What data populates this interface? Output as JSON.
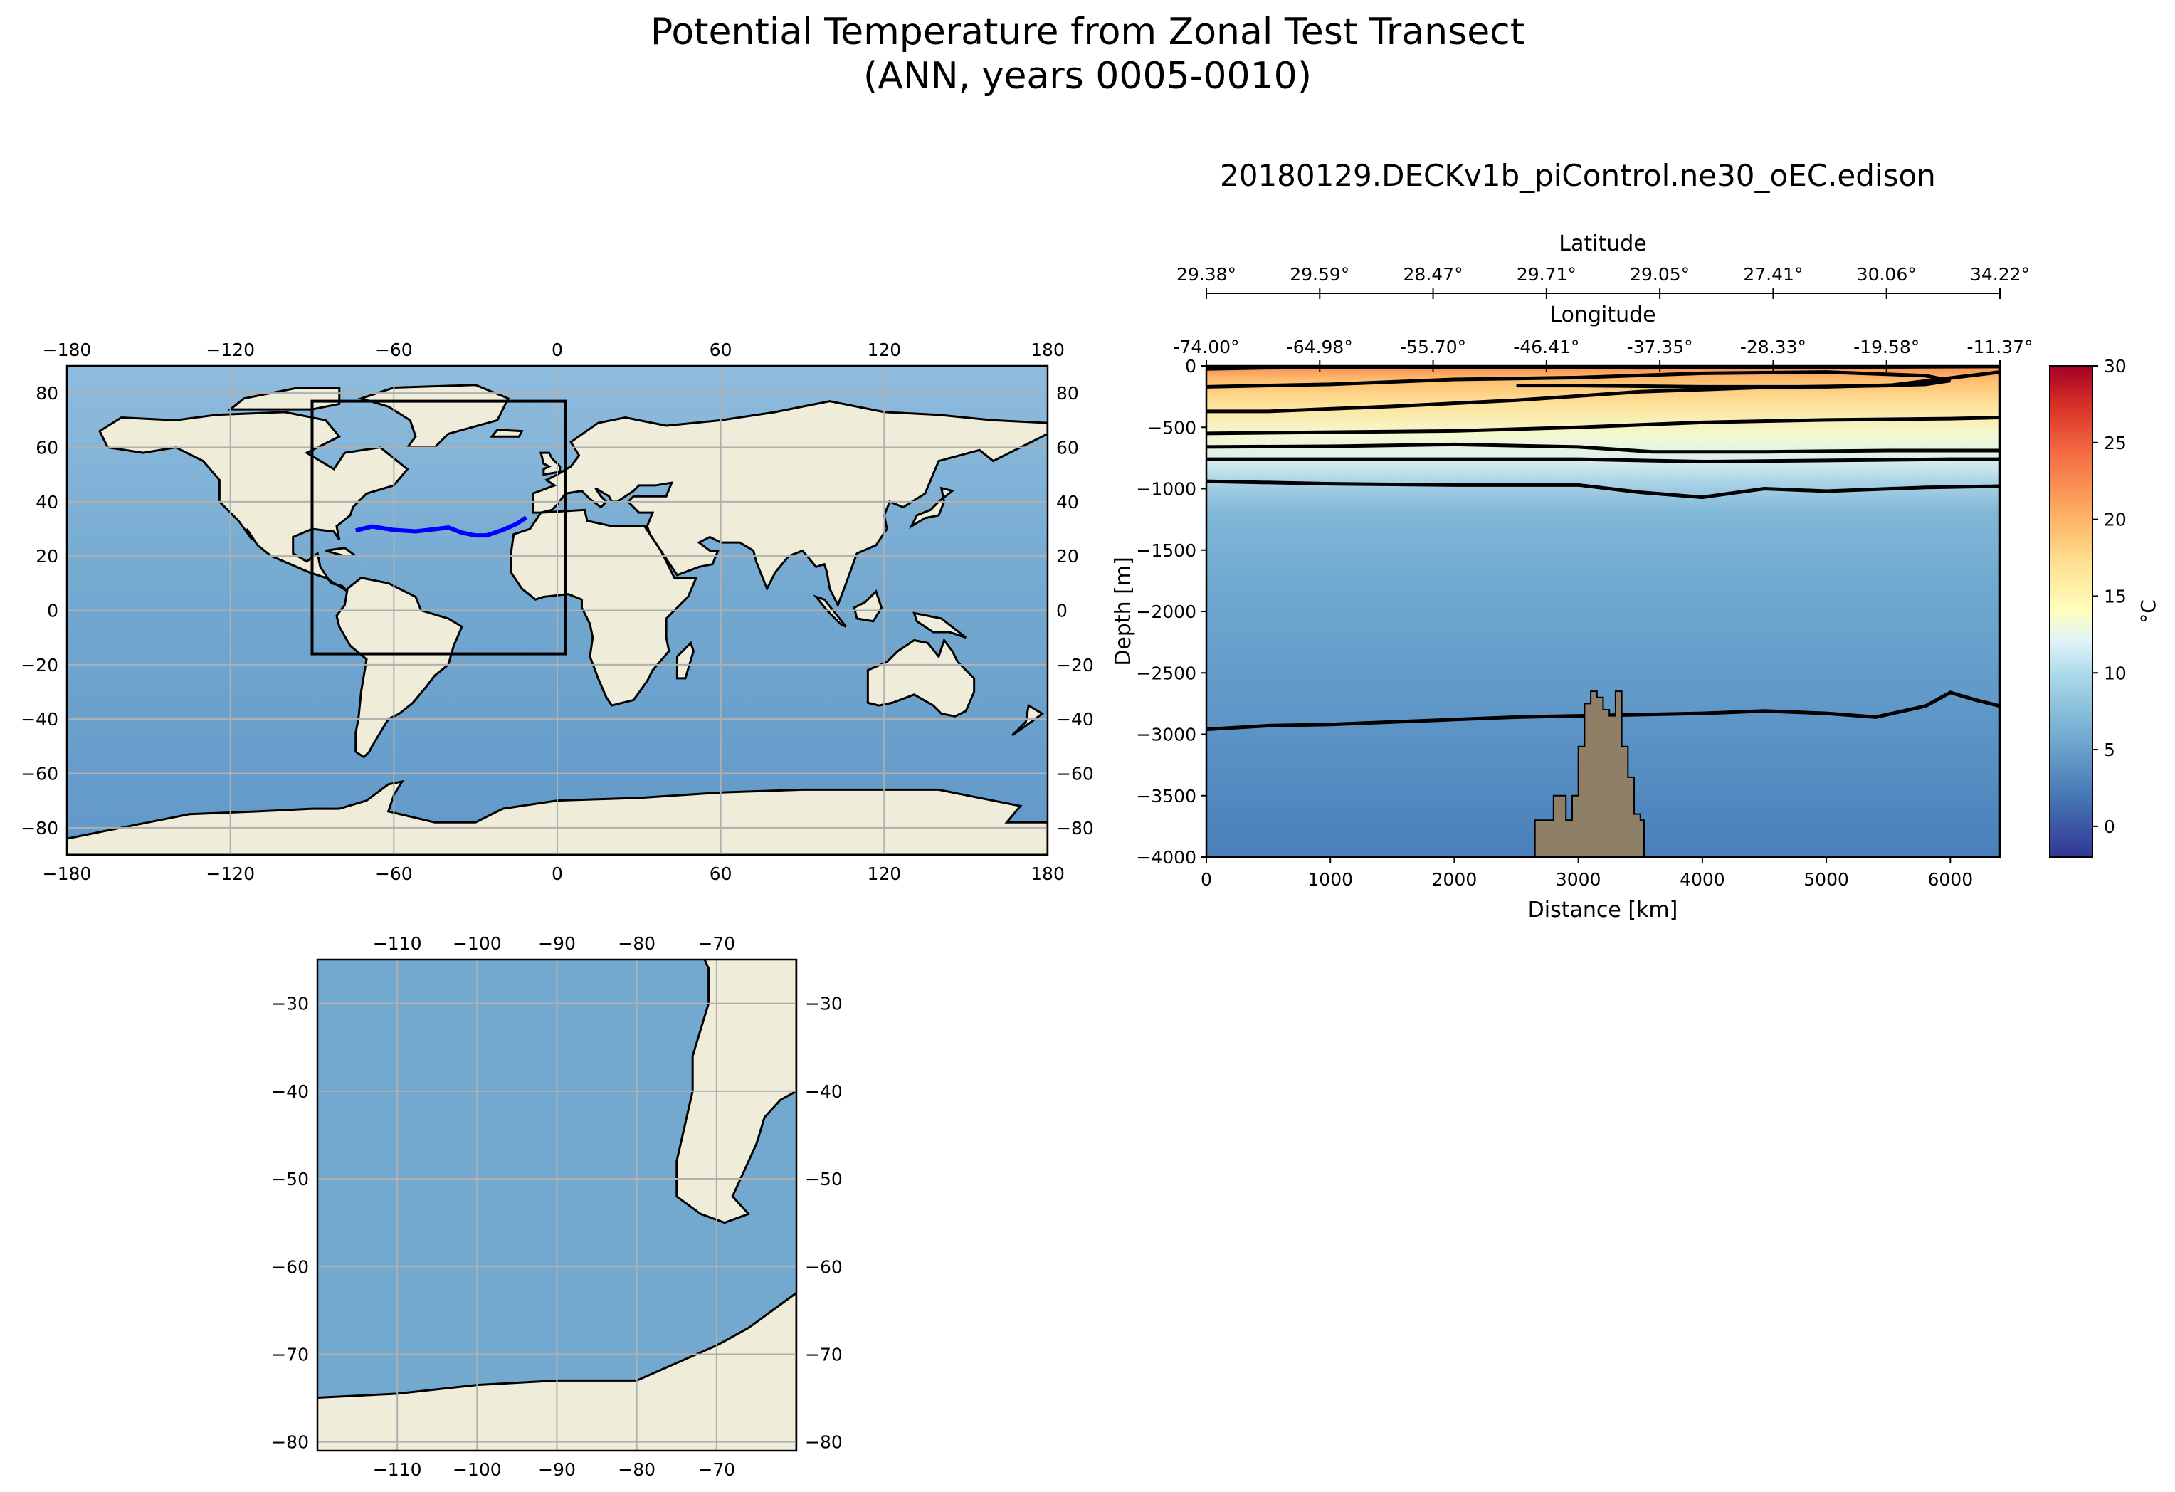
{
  "figure": {
    "title_line1": "Potential Temperature from Zonal Test Transect",
    "title_line2": "(ANN, years 0005-0010)",
    "run_name": "20180129.DECKv1b_piControl.ne30_oEC.edison"
  },
  "colors": {
    "ocean": "#74a9cf",
    "land": "#efecd9",
    "transect": "#0000ff",
    "seafloor": "#8f7f66",
    "contour": "#000000",
    "grid": "#b0b0b0"
  },
  "chart_data": [
    {
      "type": "map",
      "name": "global-map",
      "projection": "PlateCarree",
      "xlim": [
        -180,
        180
      ],
      "ylim": [
        -90,
        90
      ],
      "xticks": [
        -180,
        -120,
        -60,
        0,
        60,
        120,
        180
      ],
      "yticks": [
        -80,
        -60,
        -40,
        -20,
        0,
        20,
        40,
        60,
        80
      ],
      "grid": true,
      "region_box": {
        "lon": [
          -90,
          3
        ],
        "lat": [
          -16,
          77
        ]
      },
      "transect": {
        "lon": [
          -74.0,
          -68,
          -60,
          -52,
          -46.41,
          -40,
          -35,
          -30,
          -26,
          -20,
          -15,
          -11.37
        ],
        "lat": [
          29.38,
          30.9,
          29.6,
          29.1,
          29.7,
          30.5,
          28.6,
          27.6,
          27.6,
          29.6,
          31.8,
          34.22
        ]
      }
    },
    {
      "type": "map",
      "name": "inset-map",
      "projection": "PlateCarree",
      "xlim": [
        -120,
        -60
      ],
      "ylim": [
        -81,
        -25
      ],
      "xticks": [
        -110,
        -100,
        -90,
        -80,
        -70
      ],
      "yticks": [
        -30,
        -40,
        -50,
        -60,
        -70,
        -80
      ],
      "grid": true
    },
    {
      "type": "heatmap",
      "name": "transect-section",
      "xlabel": "Distance [km]",
      "ylabel": "Depth [m]",
      "xlim": [
        0,
        6400
      ],
      "ylim": [
        -4000,
        0
      ],
      "xticks": [
        0,
        1000,
        2000,
        3000,
        4000,
        5000,
        6000
      ],
      "yticks": [
        0,
        -500,
        -1000,
        -1500,
        -2000,
        -2500,
        -3000,
        -3500,
        -4000
      ],
      "top_axis_1": {
        "label": "Latitude",
        "ticks": [
          "29.38°",
          "29.59°",
          "28.47°",
          "29.71°",
          "29.05°",
          "27.41°",
          "30.06°",
          "34.22°"
        ]
      },
      "top_axis_2": {
        "label": "Longitude",
        "ticks": [
          "-74.00°",
          "-64.98°",
          "-55.70°",
          "-46.41°",
          "-37.35°",
          "-28.33°",
          "-19.58°",
          "-11.37°"
        ]
      },
      "colorbar": {
        "label": "°C",
        "range": [
          -2,
          30
        ],
        "ticks": [
          0,
          5,
          10,
          15,
          20,
          25,
          30
        ],
        "colormap": "RdYlBu_r"
      },
      "contours": [
        {
          "x": [
            0,
            500,
            1500,
            2500,
            3500,
            4500,
            5500,
            6400
          ],
          "depth": [
            -25,
            -15,
            -10,
            -12,
            -15,
            -10,
            -8,
            -5
          ]
        },
        {
          "x": [
            0,
            1000,
            2000,
            3000,
            4000,
            5000,
            5800,
            6000,
            5800,
            5000,
            4000,
            3000,
            2500
          ],
          "depth": [
            -170,
            -150,
            -110,
            -95,
            -60,
            -50,
            -80,
            -120,
            -150,
            -170,
            -170,
            -160,
            -160
          ]
        },
        {
          "x": [
            0,
            500,
            1500,
            2500,
            3500,
            4500,
            5500,
            6400
          ],
          "depth": [
            -370,
            -370,
            -330,
            -280,
            -210,
            -175,
            -160,
            -50
          ]
        },
        {
          "x": [
            0,
            1000,
            2000,
            3000,
            4000,
            5000,
            6000,
            6400
          ],
          "depth": [
            -550,
            -540,
            -530,
            -500,
            -460,
            -440,
            -430,
            -420
          ]
        },
        {
          "x": [
            0,
            1000,
            2000,
            3000,
            3600,
            4500,
            5500,
            6400
          ],
          "depth": [
            -660,
            -655,
            -640,
            -660,
            -700,
            -700,
            -690,
            -690
          ]
        },
        {
          "x": [
            0,
            1000,
            2000,
            3000,
            4000,
            5000,
            6000,
            6400
          ],
          "depth": [
            -760,
            -760,
            -760,
            -760,
            -780,
            -770,
            -760,
            -760
          ]
        },
        {
          "x": [
            0,
            1000,
            2000,
            3000,
            3500,
            4000,
            4500,
            5000,
            5800,
            6400
          ],
          "depth": [
            -940,
            -960,
            -970,
            -970,
            -1030,
            -1070,
            -1000,
            -1020,
            -990,
            -980
          ]
        },
        {
          "x": [
            0,
            500,
            1000,
            1500,
            2000,
            2500,
            3000,
            3500,
            4000,
            4500,
            5000,
            5400,
            5800,
            6000,
            6200,
            6400
          ],
          "depth": [
            -2960,
            -2930,
            -2920,
            -2900,
            -2880,
            -2860,
            -2850,
            -2840,
            -2830,
            -2810,
            -2830,
            -2860,
            -2770,
            -2660,
            -2720,
            -2770
          ]
        }
      ],
      "seafloor_profile": {
        "x": [
          2650,
          2800,
          2900,
          2950,
          3000,
          3050,
          3100,
          3150,
          3200,
          3250,
          3300,
          3350,
          3400,
          3450,
          3500,
          3530
        ],
        "depth": [
          -3700,
          -3500,
          -3700,
          -3500,
          -3100,
          -2750,
          -2650,
          -2700,
          -2800,
          -2850,
          -2650,
          -3100,
          -3350,
          -3650,
          -3700,
          -4000
        ]
      }
    }
  ]
}
